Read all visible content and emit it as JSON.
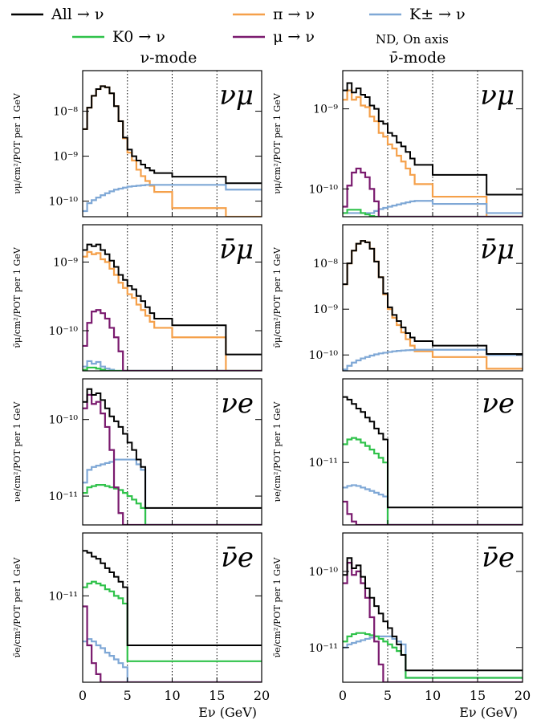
{
  "legend": {
    "entries": [
      {
        "label": "All  → ν",
        "series": "all"
      },
      {
        "label": "π → ν",
        "series": "pi"
      },
      {
        "label": "K± → ν",
        "series": "kpm"
      },
      {
        "label": "K0 → ν",
        "series": "k0"
      },
      {
        "label": "μ → ν",
        "series": "mu"
      }
    ],
    "note": "ND, On axis"
  },
  "colors": {
    "all": "#000000",
    "pi": "#f5a04a",
    "kpm": "#7fa8d6",
    "k0": "#2fc24a",
    "mu": "#7a1a6e"
  },
  "column_titles": [
    "ν-mode",
    "ν̄-mode"
  ],
  "xlabel": "Eν (GeV)",
  "chart_data": {
    "type": "line",
    "xlim": [
      0,
      20
    ],
    "xticks": [
      0,
      5,
      10,
      15,
      20
    ],
    "dotted_vlines": [
      5,
      10,
      15
    ],
    "bin_edges": [
      0,
      0.5,
      1,
      1.5,
      2,
      2.5,
      3,
      3.5,
      4,
      4.5,
      5,
      5.5,
      6,
      6.5,
      7,
      7.5,
      8,
      10,
      16,
      20
    ],
    "panels": [
      {
        "id": "numu-nu",
        "row": 0,
        "col": 0,
        "flavor": "νμ",
        "ylabel": "νμ/cm²/POT per 1 GeV",
        "yrange": [
          4.5e-11,
          8e-08
        ],
        "yticks": [
          {
            "v": 1e-08,
            "label": "10⁻⁸"
          },
          {
            "v": 1e-09,
            "label": "10⁻⁹"
          },
          {
            "v": 1e-10,
            "label": "10⁻¹⁰"
          }
        ],
        "series": {
          "all": [
            4e-09,
            1.2e-08,
            2.2e-08,
            3.1e-08,
            3.6e-08,
            3.4e-08,
            2.5e-08,
            1.3e-08,
            6e-09,
            2.6e-09,
            1.4e-09,
            1e-09,
            8e-10,
            6.5e-10,
            5.5e-10,
            4.8e-10,
            4.2e-10,
            3.5e-10,
            2.5e-10,
            8.5e-11
          ],
          "pi": [
            4e-09,
            1.2e-08,
            2.2e-08,
            3.1e-08,
            3.6e-08,
            3.4e-08,
            2.5e-08,
            1.3e-08,
            6e-09,
            2.5e-09,
            1.2e-09,
            8e-10,
            5e-10,
            3.6e-10,
            2.8e-10,
            2.2e-10,
            1.6e-10,
            7e-11,
            4e-11,
            4e-11
          ],
          "kpm": [
            6e-11,
            9e-11,
            1.05e-10,
            1.2e-10,
            1.35e-10,
            1.5e-10,
            1.65e-10,
            1.8e-10,
            1.9e-10,
            2e-10,
            2.1e-10,
            2.15e-10,
            2.2e-10,
            2.25e-10,
            2.3e-10,
            2.3e-10,
            2.3e-10,
            2.3e-10,
            1.8e-10,
            7e-11
          ]
        }
      },
      {
        "id": "numu-nubar",
        "row": 0,
        "col": 1,
        "flavor": "νμ",
        "ylabel": "νμ/cm²/POT per 1 GeV",
        "yrange": [
          4.5e-11,
          3e-09
        ],
        "yticks": [
          {
            "v": 1e-09,
            "label": "10⁻⁹"
          },
          {
            "v": 1e-10,
            "label": "10⁻¹⁰"
          }
        ],
        "series": {
          "all": [
            1.7e-09,
            2.1e-09,
            1.6e-09,
            1.8e-09,
            1.5e-09,
            1.4e-09,
            1.1e-09,
            1e-09,
            7e-10,
            6.5e-10,
            5e-10,
            4.6e-10,
            3.8e-10,
            3.4e-10,
            2.9e-10,
            2.4e-10,
            2e-10,
            1.5e-10,
            8.5e-11
          ],
          "pi": [
            1.3e-09,
            1.7e-09,
            1.3e-09,
            1.4e-09,
            1.1e-09,
            1.05e-09,
            8e-10,
            7e-10,
            5e-10,
            4.5e-10,
            3.6e-10,
            3.2e-10,
            2.6e-10,
            2.2e-10,
            1.8e-10,
            1.5e-10,
            1.15e-10,
            8e-11,
            4.5e-11
          ],
          "mu": [
            6e-11,
            1.1e-10,
            1.6e-10,
            1.8e-10,
            1.6e-10,
            1.4e-10,
            1e-10,
            7e-11,
            4.5e-11,
            4.5e-11,
            4.5e-11,
            4.5e-11,
            4.5e-11,
            4.5e-11,
            4.5e-11,
            4.5e-11,
            4.5e-11,
            4.5e-11,
            4.5e-11
          ],
          "kpm": [
            5e-11,
            5e-11,
            5e-11,
            5e-11,
            5e-11,
            5e-11,
            5e-11,
            5.3e-11,
            5.6e-11,
            5.8e-11,
            6e-11,
            6.2e-11,
            6.4e-11,
            6.6e-11,
            6.8e-11,
            7e-11,
            7.1e-11,
            6.5e-11,
            5e-11
          ],
          "k0": [
            5e-11,
            5.5e-11,
            5.5e-11,
            5.5e-11,
            5e-11,
            4.8e-11,
            4.6e-11,
            4.5e-11,
            4.5e-11,
            4.5e-11,
            4.5e-11,
            4.5e-11,
            4.5e-11,
            4.5e-11,
            4.5e-11,
            4.5e-11,
            4.5e-11,
            4.5e-11,
            4.5e-11
          ]
        }
      },
      {
        "id": "numubar-nu",
        "row": 1,
        "col": 0,
        "flavor": "ν̄μ",
        "ylabel": "ν̄μ/cm²/POT per 1 GeV",
        "yrange": [
          2.6e-11,
          3.5e-09
        ],
        "yticks": [
          {
            "v": 1e-09,
            "label": "10⁻⁹"
          },
          {
            "v": 1e-10,
            "label": "10⁻¹⁰"
          }
        ],
        "series": {
          "all": [
            1.5e-09,
            1.8e-09,
            1.7e-09,
            1.8e-09,
            1.5e-09,
            1.3e-09,
            1.05e-09,
            8.5e-10,
            6.5e-10,
            5.5e-10,
            4.5e-10,
            4e-10,
            3.2e-10,
            2.7e-10,
            2.2e-10,
            1.8e-10,
            1.5e-10,
            1.2e-10,
            4.5e-11
          ],
          "pi": [
            1.2e-09,
            1.4e-09,
            1.3e-09,
            1.35e-09,
            1.1e-09,
            1e-09,
            8e-10,
            6.5e-10,
            5e-10,
            4.2e-10,
            3.4e-10,
            3e-10,
            2.4e-10,
            2e-10,
            1.65e-10,
            1.35e-10,
            1.1e-10,
            8e-11,
            2.6e-11
          ],
          "mu": [
            6e-11,
            1.3e-10,
            1.9e-10,
            2e-10,
            1.8e-10,
            1.5e-10,
            1.1e-10,
            8e-11,
            5e-11,
            2.6e-11,
            2.6e-11,
            2.6e-11,
            2.6e-11,
            2.6e-11,
            2.6e-11,
            2.6e-11,
            2.6e-11,
            2.6e-11,
            2.6e-11
          ],
          "kpm": [
            3e-11,
            3.6e-11,
            3.3e-11,
            3.5e-11,
            3e-11,
            2.8e-11,
            2.7e-11,
            2.6e-11,
            2.6e-11,
            2.6e-11,
            2.6e-11,
            2.6e-11,
            2.6e-11,
            2.6e-11,
            2.6e-11,
            2.6e-11,
            2.6e-11,
            2.6e-11,
            2.6e-11
          ],
          "k0": [
            2.7e-11,
            2.9e-11,
            2.9e-11,
            2.8e-11,
            2.7e-11,
            2.6e-11,
            2.6e-11,
            2.6e-11,
            2.6e-11,
            2.6e-11,
            2.6e-11,
            2.6e-11,
            2.6e-11,
            2.6e-11,
            2.6e-11,
            2.6e-11,
            2.6e-11,
            2.6e-11,
            2.6e-11
          ]
        }
      },
      {
        "id": "numubar-nubar",
        "row": 1,
        "col": 1,
        "flavor": "ν̄μ",
        "ylabel": "ν̄μ/cm²/POT per 1 GeV",
        "yrange": [
          4.5e-11,
          7e-08
        ],
        "yticks": [
          {
            "v": 1e-08,
            "label": "10⁻⁸"
          },
          {
            "v": 1e-09,
            "label": "10⁻⁹"
          },
          {
            "v": 1e-10,
            "label": "10⁻¹⁰"
          }
        ],
        "series": {
          "all": [
            3.5e-09,
            1e-08,
            1.9e-08,
            2.7e-08,
            3.1e-08,
            2.9e-08,
            2.1e-08,
            1.1e-08,
            5e-09,
            2.2e-09,
            1.1e-09,
            7.5e-10,
            5.5e-10,
            4e-10,
            3e-10,
            2.4e-10,
            2e-10,
            1.6e-10,
            1.05e-10,
            5.5e-11
          ],
          "pi": [
            3.5e-09,
            1e-08,
            1.9e-08,
            2.7e-08,
            3.1e-08,
            2.9e-08,
            2.1e-08,
            1.1e-08,
            5e-09,
            2.1e-09,
            1e-09,
            6.5e-10,
            4.5e-10,
            3.1e-10,
            2.2e-10,
            1.6e-10,
            1.2e-10,
            9e-11,
            5e-11,
            4.5e-11
          ],
          "kpm": [
            4.8e-11,
            5.8e-11,
            6.8e-11,
            7.6e-11,
            8.4e-11,
            9e-11,
            9.7e-11,
            1.03e-10,
            1.08e-10,
            1.12e-10,
            1.16e-10,
            1.2e-10,
            1.23e-10,
            1.25e-10,
            1.27e-10,
            1.28e-10,
            1.3e-10,
            1.3e-10,
            1e-10,
            5.5e-11
          ]
        }
      },
      {
        "id": "nue-nu",
        "row": 2,
        "col": 0,
        "flavor": "νe",
        "ylabel": "νe/cm²/POT per 1 GeV",
        "yrange": [
          4.2e-12,
          3.4e-10
        ],
        "yticks": [
          {
            "v": 1e-10,
            "label": "10⁻¹⁰"
          },
          {
            "v": 1e-11,
            "label": "10⁻¹¹"
          }
        ],
        "series": {
          "all": [
            1.7e-10,
            2.5e-10,
            2.1e-10,
            2.2e-10,
            1.8e-10,
            1.4e-10,
            1.1e-10,
            9.5e-11,
            8e-11,
            6.5e-11,
            5e-11,
            4e-11,
            3e-11,
            2.4e-11,
            7e-12
          ],
          "mu": [
            1.4e-10,
            2.1e-10,
            1.6e-10,
            1.7e-10,
            1.2e-10,
            8e-11,
            4e-11,
            1.3e-11,
            6e-12,
            4.2e-12,
            4.2e-12,
            4.2e-12,
            4.2e-12,
            4.2e-12,
            4.2e-12
          ],
          "kpm": [
            1.5e-11,
            2.2e-11,
            2.4e-11,
            2.5e-11,
            2.6e-11,
            2.7e-11,
            2.8e-11,
            3e-11,
            3e-11,
            3e-11,
            3e-11,
            3e-11,
            2.6e-11,
            2.2e-11,
            4.2e-12
          ],
          "k0": [
            1.1e-11,
            1.3e-11,
            1.35e-11,
            1.4e-11,
            1.4e-11,
            1.35e-11,
            1.3e-11,
            1.25e-11,
            1.2e-11,
            1.1e-11,
            1e-11,
            9e-12,
            8e-12,
            7e-12,
            4.2e-12
          ]
        }
      },
      {
        "id": "nue-nubar",
        "row": 2,
        "col": 1,
        "flavor": "νe",
        "ylabel": "νe/cm²/POT per 1 GeV",
        "yrange": [
          2.8e-12,
          5.5e-11
        ],
        "yticks": [
          {
            "v": 1e-11,
            "label": "10⁻¹¹"
          }
        ],
        "series": {
          "all": [
            3.8e-11,
            3.6e-11,
            3.3e-11,
            3e-11,
            2.8e-11,
            2.5e-11,
            2.3e-11,
            2e-11,
            1.8e-11,
            1.6e-11,
            4e-12
          ],
          "k0": [
            1.45e-11,
            1.6e-11,
            1.65e-11,
            1.6e-11,
            1.5e-11,
            1.4e-11,
            1.3e-11,
            1.2e-11,
            1.1e-11,
            1e-11,
            2.8e-12
          ],
          "kpm": [
            6e-12,
            6.2e-12,
            6.3e-12,
            6.2e-12,
            6e-12,
            5.8e-12,
            5.6e-12,
            5.4e-12,
            5.2e-12,
            5e-12,
            2.8e-12
          ],
          "mu": [
            4.5e-12,
            3.5e-12,
            3e-12,
            2.8e-12,
            2.8e-12,
            2.8e-12,
            2.8e-12,
            2.8e-12,
            2.8e-12,
            2.8e-12,
            2.8e-12
          ]
        }
      },
      {
        "id": "nuebar-nu",
        "row": 3,
        "col": 0,
        "flavor": "ν̄e",
        "ylabel": "ν̄e/cm²/POT per 1 GeV",
        "yrange": [
          1.6e-12,
          3.8e-11
        ],
        "yticks": [
          {
            "v": 1e-11,
            "label": "10⁻¹¹"
          }
        ],
        "series": {
          "all": [
            2.6e-11,
            2.5e-11,
            2.3e-11,
            2.2e-11,
            2e-11,
            1.8e-11,
            1.65e-11,
            1.5e-11,
            1.35e-11,
            1.2e-11,
            3.5e-12
          ],
          "k0": [
            1.2e-11,
            1.3e-11,
            1.35e-11,
            1.3e-11,
            1.25e-11,
            1.15e-11,
            1.1e-11,
            1e-11,
            9.5e-12,
            8.5e-12,
            2.5e-12
          ],
          "kpm": [
            3.8e-12,
            4e-12,
            3.8e-12,
            3.5e-12,
            3.3e-12,
            3e-12,
            2.8e-12,
            2.6e-12,
            2.4e-12,
            2.2e-12,
            1.6e-12
          ],
          "mu": [
            8e-12,
            3.5e-12,
            2.4e-12,
            1.9e-12,
            1.6e-12,
            1.6e-12,
            1.6e-12,
            1.6e-12,
            1.6e-12,
            1.6e-12,
            1.6e-12
          ]
        }
      },
      {
        "id": "nuebar-nubar",
        "row": 3,
        "col": 1,
        "flavor": "ν̄e",
        "ylabel": "ν̄e/cm²/POT per 1 GeV",
        "yrange": [
          3.5e-12,
          3.2e-10
        ],
        "yticks": [
          {
            "v": 1e-10,
            "label": "10⁻¹⁰"
          },
          {
            "v": 1e-11,
            "label": "10⁻¹¹"
          }
        ],
        "series": {
          "all": [
            9e-11,
            1.5e-10,
            1.1e-10,
            1.2e-10,
            8.5e-11,
            6e-11,
            4.5e-11,
            3.5e-11,
            2.8e-11,
            2.2e-11,
            1.8e-11,
            1.4e-11,
            1.1e-11,
            8e-12,
            5e-12
          ],
          "mu": [
            7e-11,
            1.3e-10,
            9e-11,
            1e-10,
            7e-11,
            4.5e-11,
            2.5e-11,
            1.2e-11,
            6e-12,
            3.5e-12,
            3.5e-12,
            3.5e-12,
            3.5e-12,
            3.5e-12,
            3.5e-12
          ],
          "k0": [
            1.2e-11,
            1.4e-11,
            1.5e-11,
            1.55e-11,
            1.55e-11,
            1.5e-11,
            1.45e-11,
            1.4e-11,
            1.3e-11,
            1.2e-11,
            1.1e-11,
            1e-11,
            9e-12,
            8e-12,
            4e-12
          ],
          "kpm": [
            1e-11,
            1.1e-11,
            1.15e-11,
            1.2e-11,
            1.25e-11,
            1.3e-11,
            1.35e-11,
            1.4e-11,
            1.4e-11,
            1.4e-11,
            1.4e-11,
            1.3e-11,
            1.2e-11,
            1.1e-11,
            4e-12
          ]
        }
      }
    ]
  }
}
